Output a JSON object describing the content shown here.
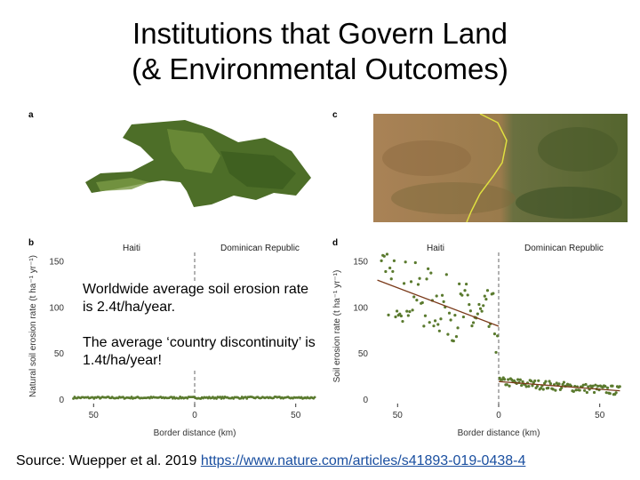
{
  "slide": {
    "title_line1": "Institutions that Govern Land",
    "title_line2": "(& Environmental Outcomes)"
  },
  "panels": {
    "a": "a",
    "b": "b",
    "c": "c",
    "d": "d"
  },
  "overlay": {
    "line1": "Worldwide average soil erosion rate is 2.4t/ha/year.",
    "line2": "The average ‘country discontinuity’ is 1.4t/ha/year!"
  },
  "source": {
    "prefix": "Source: Wuepper et al. 2019 ",
    "link": "https://www.nature.com/articles/s41893-019-0438-4"
  },
  "colors": {
    "points": "#5a7a2e",
    "trend": "#7a3a1a",
    "border_line": "#e0e040",
    "forest": "#4d6e28"
  },
  "chart_data": [
    {
      "panel": "b",
      "type": "scatter",
      "countries": [
        "Haiti",
        "Dominican Republic"
      ],
      "xlabel": "Border distance (km)",
      "ylabel": "Natural soil erosion rate (t ha⁻¹ yr⁻¹)",
      "xticks": [
        "50",
        "0",
        "50"
      ],
      "yticks": [
        "0",
        "50",
        "100",
        "150"
      ],
      "ylim": [
        0,
        160
      ],
      "summary": "Points flat near 1-2 on both sides of the border"
    },
    {
      "panel": "d",
      "type": "scatter",
      "countries": [
        "Haiti",
        "Dominican Republic"
      ],
      "xlabel": "Border distance (km)",
      "ylabel": "Soil erosion rate (t ha⁻¹ yr⁻¹)",
      "xticks": [
        "50",
        "0",
        "50"
      ],
      "yticks": [
        "0",
        "50",
        "100",
        "150"
      ],
      "ylim": [
        0,
        160
      ],
      "trend": [
        {
          "side": "Haiti",
          "x": [
            -60,
            0
          ],
          "y": [
            130,
            80
          ]
        },
        {
          "side": "Dominican Republic",
          "x": [
            0,
            60
          ],
          "y": [
            20,
            10
          ]
        }
      ]
    }
  ]
}
